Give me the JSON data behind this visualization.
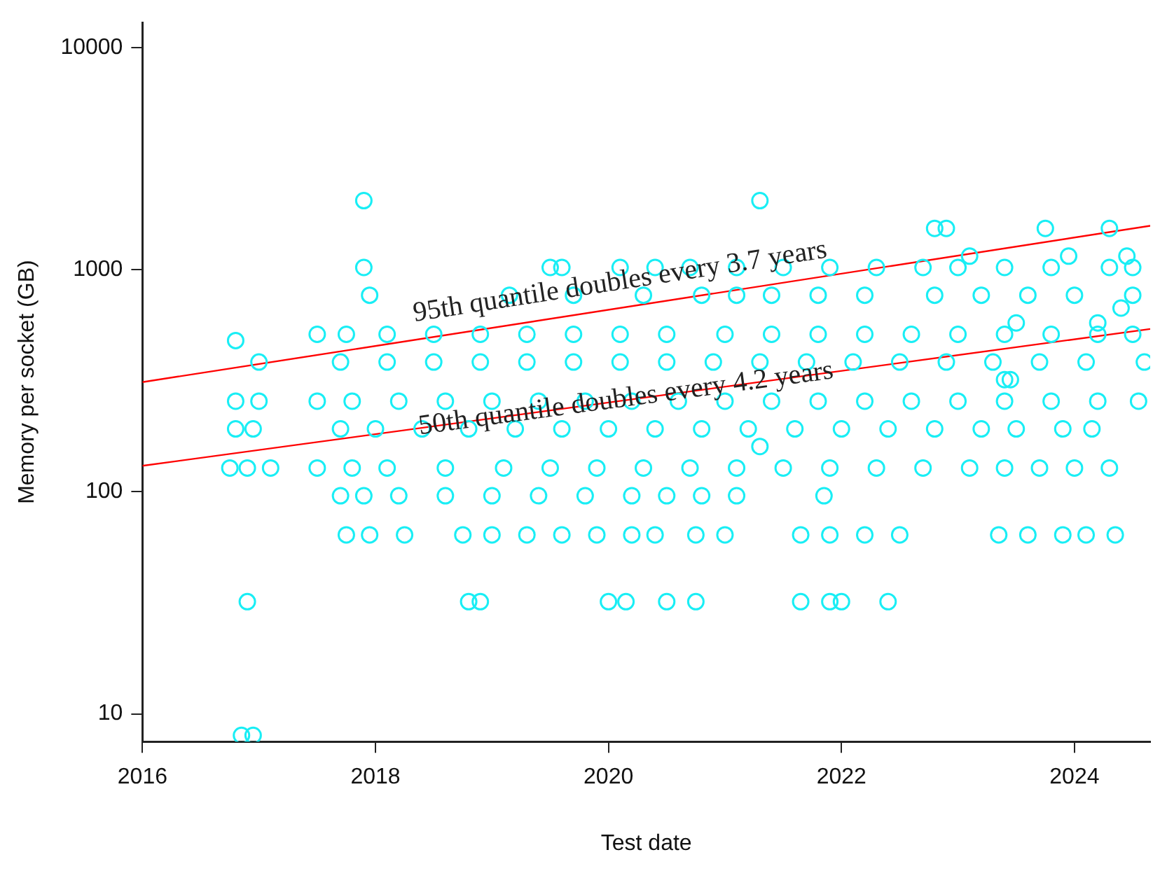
{
  "chart_data": {
    "type": "scatter",
    "xlabel": "Test date",
    "ylabel": "Memory per socket (GB)",
    "log": "y",
    "grid": false,
    "legend": false,
    "xlim": [
      2016,
      2024.65
    ],
    "xticks": [
      2016,
      2018,
      2020,
      2022,
      2024
    ],
    "ylim": [
      7.5,
      13000
    ],
    "yticks": [
      10,
      100,
      1000,
      10000
    ],
    "series": [
      {
        "marker": "circle",
        "color": "#19eef5",
        "x": [
          2016.85,
          2016.95,
          2016.9,
          2018.8,
          2018.9,
          2020.0,
          2020.15,
          2020.5,
          2020.75,
          2021.65,
          2021.9,
          2022.0,
          2022.4,
          2017.75,
          2017.95,
          2018.25,
          2018.75,
          2019.0,
          2019.3,
          2019.6,
          2019.9,
          2020.2,
          2020.4,
          2020.75,
          2021.0,
          2021.65,
          2021.9,
          2022.2,
          2022.5,
          2023.35,
          2023.6,
          2023.9,
          2024.1,
          2024.35,
          2017.7,
          2017.9,
          2018.2,
          2018.6,
          2019.0,
          2019.4,
          2019.8,
          2020.2,
          2020.5,
          2020.8,
          2021.1,
          2021.85,
          2016.75,
          2016.9,
          2017.1,
          2017.5,
          2017.8,
          2018.1,
          2018.6,
          2019.1,
          2019.5,
          2019.9,
          2020.3,
          2020.7,
          2021.1,
          2021.5,
          2021.9,
          2022.3,
          2022.7,
          2023.1,
          2023.4,
          2023.7,
          2024.0,
          2024.3,
          2021.3,
          2016.8,
          2016.95,
          2017.7,
          2018.0,
          2018.4,
          2018.8,
          2019.2,
          2019.6,
          2020.0,
          2020.4,
          2020.8,
          2021.2,
          2021.6,
          2022.0,
          2022.4,
          2022.8,
          2023.2,
          2023.5,
          2023.9,
          2024.15,
          2016.8,
          2017.0,
          2017.5,
          2017.8,
          2018.2,
          2018.6,
          2019.0,
          2019.4,
          2019.8,
          2020.2,
          2020.6,
          2021.0,
          2021.4,
          2021.8,
          2022.2,
          2022.6,
          2023.0,
          2023.4,
          2023.8,
          2024.2,
          2024.55,
          2017.0,
          2017.7,
          2018.1,
          2018.5,
          2018.9,
          2019.3,
          2019.7,
          2020.1,
          2020.5,
          2020.9,
          2021.3,
          2021.7,
          2022.1,
          2022.5,
          2022.9,
          2023.3,
          2023.7,
          2024.1,
          2024.6,
          2017.5,
          2017.75,
          2018.1,
          2018.5,
          2018.9,
          2019.3,
          2019.7,
          2020.1,
          2020.5,
          2021.0,
          2021.4,
          2021.8,
          2022.2,
          2022.6,
          2023.0,
          2023.4,
          2023.8,
          2024.2,
          2024.5,
          2017.95,
          2019.15,
          2019.7,
          2020.3,
          2020.8,
          2021.1,
          2021.4,
          2021.8,
          2022.2,
          2022.8,
          2023.2,
          2023.6,
          2024.0,
          2024.5,
          2017.9,
          2019.5,
          2019.6,
          2020.1,
          2020.4,
          2020.7,
          2021.1,
          2021.5,
          2021.9,
          2022.3,
          2022.7,
          2023.0,
          2023.4,
          2023.8,
          2024.3,
          2024.5,
          2023.1,
          2023.95,
          2024.45,
          2022.8,
          2022.9,
          2023.75,
          2024.3,
          2017.9,
          2021.3,
          2016.8,
          2023.4,
          2023.45,
          2023.5,
          2024.2,
          2024.4
        ],
        "values": [
          8,
          8,
          32,
          32,
          32,
          32,
          32,
          32,
          32,
          32,
          32,
          32,
          32,
          64,
          64,
          64,
          64,
          64,
          64,
          64,
          64,
          64,
          64,
          64,
          64,
          64,
          64,
          64,
          64,
          64,
          64,
          64,
          64,
          64,
          96,
          96,
          96,
          96,
          96,
          96,
          96,
          96,
          96,
          96,
          96,
          96,
          128,
          128,
          128,
          128,
          128,
          128,
          128,
          128,
          128,
          128,
          128,
          128,
          128,
          128,
          128,
          128,
          128,
          128,
          128,
          128,
          128,
          128,
          160,
          192,
          192,
          192,
          192,
          192,
          192,
          192,
          192,
          192,
          192,
          192,
          192,
          192,
          192,
          192,
          192,
          192,
          192,
          192,
          192,
          256,
          256,
          256,
          256,
          256,
          256,
          256,
          256,
          256,
          256,
          256,
          256,
          256,
          256,
          256,
          256,
          256,
          256,
          256,
          256,
          256,
          384,
          384,
          384,
          384,
          384,
          384,
          384,
          384,
          384,
          384,
          384,
          384,
          384,
          384,
          384,
          384,
          384,
          384,
          384,
          512,
          512,
          512,
          512,
          512,
          512,
          512,
          512,
          512,
          512,
          512,
          512,
          512,
          512,
          512,
          512,
          512,
          512,
          512,
          768,
          768,
          768,
          768,
          768,
          768,
          768,
          768,
          768,
          768,
          768,
          768,
          768,
          768,
          1024,
          1024,
          1024,
          1024,
          1024,
          1024,
          1024,
          1024,
          1024,
          1024,
          1024,
          1024,
          1024,
          1024,
          1024,
          1024,
          1152,
          1152,
          1152,
          1536,
          1536,
          1536,
          1536,
          2048,
          2048,
          480,
          320,
          320,
          576,
          576,
          672
        ]
      },
      {
        "type": "line",
        "marker": "none",
        "color": "#ff0000",
        "x": [
          2016,
          2024.65
        ],
        "values": [
          312,
          1578
        ]
      },
      {
        "type": "line",
        "marker": "none",
        "color": "#ff0000",
        "x": [
          2016,
          2024.65
        ],
        "values": [
          131,
          541
        ]
      }
    ],
    "annotations": [
      {
        "text": "95th quantile doubles every 3.7 years",
        "x": 2020.1,
        "y": 880
      },
      {
        "text": "50th quantile doubles every 4.2 years",
        "x": 2020.15,
        "y": 262
      }
    ]
  }
}
